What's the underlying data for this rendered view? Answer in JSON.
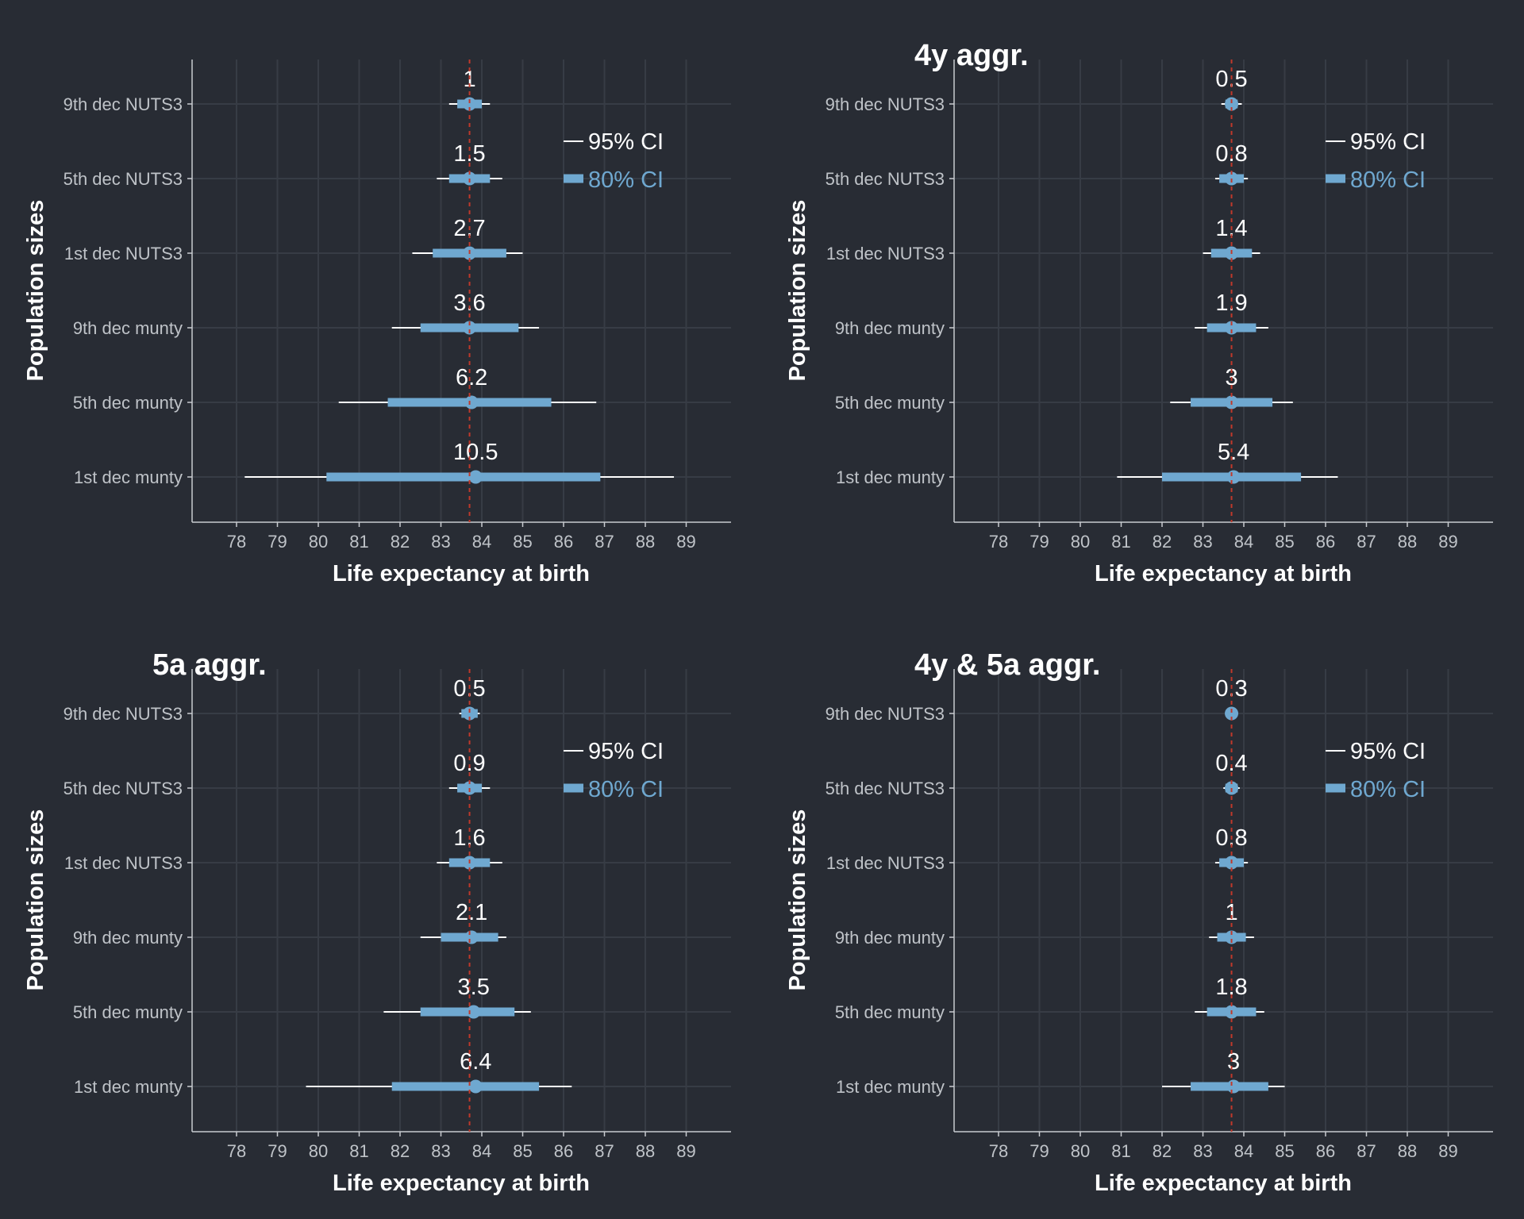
{
  "colors": {
    "background": "#282c34",
    "grid": "#373c45",
    "axis": "#c8cbd0",
    "ci95": "#ffffff",
    "ci80": "#6fa8d0",
    "point": "#6fa8d0",
    "reference_line": "#c0392b",
    "text": "#ffffff",
    "tick_text": "#bfc3c8",
    "legend_80": "#6fa8d0"
  },
  "legend": {
    "ci95_label": "95% CI",
    "ci80_label": "80% CI"
  },
  "chart_data": [
    {
      "type": "interval",
      "title": "",
      "xlabel": "Life expectancy at birth",
      "ylabel": "Population sizes",
      "xlim": [
        77,
        90
      ],
      "xticks": [
        78,
        79,
        80,
        81,
        82,
        83,
        84,
        85,
        86,
        87,
        88,
        89
      ],
      "reference_x": 83.7,
      "legend_position": "top-right",
      "categories": [
        "9th dec NUTS3",
        "5th dec NUTS3",
        "1st dec NUTS3",
        "9th dec munty",
        "5th dec munty",
        "1st dec munty"
      ],
      "points": [
        83.7,
        83.7,
        83.7,
        83.7,
        83.75,
        83.85
      ],
      "ci80": [
        [
          83.4,
          84.0
        ],
        [
          83.2,
          84.2
        ],
        [
          82.8,
          84.6
        ],
        [
          82.5,
          84.9
        ],
        [
          81.7,
          85.7
        ],
        [
          80.2,
          86.9
        ]
      ],
      "ci95": [
        [
          83.2,
          84.2
        ],
        [
          82.9,
          84.5
        ],
        [
          82.3,
          85.0
        ],
        [
          81.8,
          85.4
        ],
        [
          80.5,
          86.8
        ],
        [
          78.2,
          88.7
        ]
      ],
      "labels": [
        "1",
        "1.5",
        "2.7",
        "3.6",
        "6.2",
        "10.5"
      ]
    },
    {
      "type": "interval",
      "title": "4y aggr.",
      "xlabel": "Life expectancy at birth",
      "ylabel": "Population sizes",
      "xlim": [
        77,
        90
      ],
      "xticks": [
        78,
        79,
        80,
        81,
        82,
        83,
        84,
        85,
        86,
        87,
        88,
        89
      ],
      "reference_x": 83.7,
      "legend_position": "top-right",
      "categories": [
        "9th dec NUTS3",
        "5th dec NUTS3",
        "1st dec NUTS3",
        "9th dec munty",
        "5th dec munty",
        "1st dec munty"
      ],
      "points": [
        83.7,
        83.7,
        83.7,
        83.7,
        83.7,
        83.75
      ],
      "ci80": [
        [
          83.55,
          83.85
        ],
        [
          83.4,
          84.0
        ],
        [
          83.2,
          84.2
        ],
        [
          83.1,
          84.3
        ],
        [
          82.7,
          84.7
        ],
        [
          82.0,
          85.4
        ]
      ],
      "ci95": [
        [
          83.45,
          83.95
        ],
        [
          83.3,
          84.1
        ],
        [
          83.0,
          84.4
        ],
        [
          82.8,
          84.6
        ],
        [
          82.2,
          85.2
        ],
        [
          80.9,
          86.3
        ]
      ],
      "labels": [
        "0.5",
        "0.8",
        "1.4",
        "1.9",
        "3",
        "5.4"
      ]
    },
    {
      "type": "interval",
      "title": "5a aggr.",
      "xlabel": "Life expectancy at birth",
      "ylabel": "Population sizes",
      "xlim": [
        77,
        90
      ],
      "xticks": [
        78,
        79,
        80,
        81,
        82,
        83,
        84,
        85,
        86,
        87,
        88,
        89
      ],
      "reference_x": 83.7,
      "legend_position": "top-right",
      "categories": [
        "9th dec NUTS3",
        "5th dec NUTS3",
        "1st dec NUTS3",
        "9th dec munty",
        "5th dec munty",
        "1st dec munty"
      ],
      "points": [
        83.7,
        83.7,
        83.7,
        83.75,
        83.8,
        83.85
      ],
      "ci80": [
        [
          83.5,
          83.9
        ],
        [
          83.4,
          84.0
        ],
        [
          83.2,
          84.2
        ],
        [
          83.0,
          84.4
        ],
        [
          82.5,
          84.8
        ],
        [
          81.8,
          85.4
        ]
      ],
      "ci95": [
        [
          83.45,
          83.95
        ],
        [
          83.2,
          84.2
        ],
        [
          82.9,
          84.5
        ],
        [
          82.5,
          84.6
        ],
        [
          81.6,
          85.2
        ],
        [
          79.7,
          86.2
        ]
      ],
      "labels": [
        "0.5",
        "0.9",
        "1.6",
        "2.1",
        "3.5",
        "6.4"
      ]
    },
    {
      "type": "interval",
      "title": "4y & 5a aggr.",
      "xlabel": "Life expectancy at birth",
      "ylabel": "Population sizes",
      "xlim": [
        77,
        90
      ],
      "xticks": [
        78,
        79,
        80,
        81,
        82,
        83,
        84,
        85,
        86,
        87,
        88,
        89
      ],
      "reference_x": 83.7,
      "legend_position": "top-right",
      "categories": [
        "9th dec NUTS3",
        "5th dec NUTS3",
        "1st dec NUTS3",
        "9th dec munty",
        "5th dec munty",
        "1st dec munty"
      ],
      "points": [
        83.7,
        83.7,
        83.7,
        83.7,
        83.7,
        83.75
      ],
      "ci80": [
        [
          83.6,
          83.8
        ],
        [
          83.55,
          83.85
        ],
        [
          83.4,
          84.0
        ],
        [
          83.35,
          84.05
        ],
        [
          83.1,
          84.3
        ],
        [
          82.7,
          84.6
        ]
      ],
      "ci95": [
        [
          83.55,
          83.85
        ],
        [
          83.5,
          83.9
        ],
        [
          83.3,
          84.1
        ],
        [
          83.15,
          84.25
        ],
        [
          82.8,
          84.5
        ],
        [
          82.0,
          85.0
        ]
      ],
      "labels": [
        "0.3",
        "0.4",
        "0.8",
        "1",
        "1.8",
        "3"
      ]
    }
  ]
}
